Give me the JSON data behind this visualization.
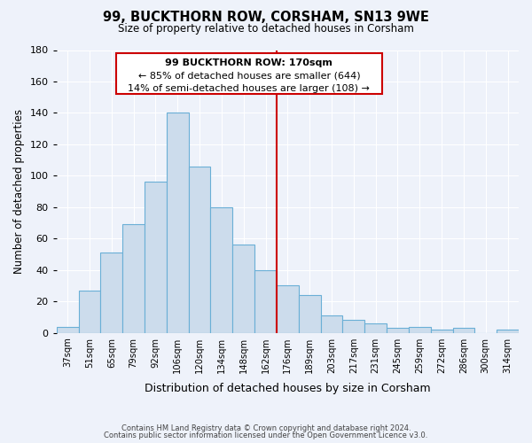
{
  "title": "99, BUCKTHORN ROW, CORSHAM, SN13 9WE",
  "subtitle": "Size of property relative to detached houses in Corsham",
  "xlabel": "Distribution of detached houses by size in Corsham",
  "ylabel": "Number of detached properties",
  "bar_labels": [
    "37sqm",
    "51sqm",
    "65sqm",
    "79sqm",
    "92sqm",
    "106sqm",
    "120sqm",
    "134sqm",
    "148sqm",
    "162sqm",
    "176sqm",
    "189sqm",
    "203sqm",
    "217sqm",
    "231sqm",
    "245sqm",
    "259sqm",
    "272sqm",
    "286sqm",
    "300sqm",
    "314sqm"
  ],
  "bar_heights": [
    4,
    27,
    51,
    69,
    96,
    140,
    106,
    80,
    56,
    40,
    30,
    24,
    11,
    8,
    6,
    3,
    4,
    2,
    3,
    0,
    2
  ],
  "bar_color": "#ccdcec",
  "bar_edgecolor": "#6aafd6",
  "vline_color": "#cc0000",
  "ylim": [
    0,
    180
  ],
  "yticks": [
    0,
    20,
    40,
    60,
    80,
    100,
    120,
    140,
    160,
    180
  ],
  "annotation_title": "99 BUCKTHORN ROW: 170sqm",
  "annotation_line1": "← 85% of detached houses are smaller (644)",
  "annotation_line2": "14% of semi-detached houses are larger (108) →",
  "footer_line1": "Contains HM Land Registry data © Crown copyright and database right 2024.",
  "footer_line2": "Contains public sector information licensed under the Open Government Licence v3.0.",
  "background_color": "#eef2fa",
  "plot_bg_color": "#eef2fa"
}
